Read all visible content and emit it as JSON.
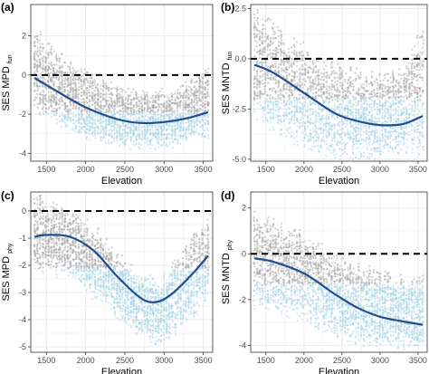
{
  "colors": {
    "grid": "#ebebeb",
    "panel_border": "#333333",
    "points_grey": "#a9a9a9",
    "points_blue": "#a7d3e6",
    "trend_line": "#1f4e8c",
    "reference_line": "#000000"
  },
  "chart_data": [
    {
      "type": "scatter",
      "panel": "(a)",
      "xlabel": "Elevation",
      "ylabel": "SES MPD",
      "ylabel_sub": "fun",
      "xlim": [
        1300,
        3620
      ],
      "ylim": [
        -4.4,
        3.6
      ],
      "xticks": [
        1500,
        2000,
        2500,
        3000,
        3500
      ],
      "yticks": [
        -4,
        -2,
        0,
        2
      ],
      "grid": true,
      "reference_line": {
        "y": 0,
        "style": "dashed"
      },
      "trend": {
        "x": [
          1350,
          1600,
          2000,
          2400,
          2700,
          3000,
          3300,
          3560
        ],
        "y": [
          -0.15,
          -0.75,
          -1.65,
          -2.25,
          -2.45,
          -2.4,
          -2.2,
          -1.9
        ]
      },
      "point_cloud": {
        "top": [
          2.3,
          1.3,
          0.2,
          -0.5,
          -0.9,
          -0.8,
          -0.3,
          0.7
        ],
        "bottom": [
          -1.9,
          -2.5,
          -3.2,
          -3.6,
          -3.8,
          -3.7,
          -3.5,
          -3.2
        ],
        "blue_threshold": -1.9
      }
    },
    {
      "type": "scatter",
      "panel": "(b)",
      "xlabel": "Elevation",
      "ylabel": "SES MNTD",
      "ylabel_sub": "fun",
      "xlim": [
        1300,
        3620
      ],
      "ylim": [
        -5.1,
        2.7
      ],
      "xticks": [
        1500,
        2000,
        2500,
        3000,
        3500
      ],
      "yticks": [
        -5.0,
        -2.5,
        0.0,
        2.5
      ],
      "grid": true,
      "reference_line": {
        "y": 0,
        "style": "dashed"
      },
      "trend": {
        "x": [
          1350,
          1600,
          2000,
          2400,
          2700,
          3000,
          3300,
          3560
        ],
        "y": [
          -0.3,
          -0.7,
          -1.7,
          -2.7,
          -3.1,
          -3.3,
          -3.25,
          -2.85
        ]
      },
      "point_cloud": {
        "top": [
          2.5,
          1.7,
          0.6,
          -0.3,
          -0.7,
          -0.7,
          -0.3,
          1.5
        ],
        "bottom": [
          -2.9,
          -3.6,
          -4.5,
          -5.0,
          -5.0,
          -5.0,
          -4.8,
          -4.6
        ],
        "blue_threshold": -2.0
      }
    },
    {
      "type": "scatter",
      "panel": "(c)",
      "xlabel": "Elevation",
      "ylabel": "SES MPD",
      "ylabel_sub": "phy",
      "xlim": [
        1300,
        3620
      ],
      "ylim": [
        -5.2,
        0.7
      ],
      "xticks": [
        1500,
        2000,
        2500,
        3000,
        3500
      ],
      "yticks": [
        -5,
        -4,
        -3,
        -2,
        -1,
        0
      ],
      "grid": true,
      "reference_line": {
        "y": 0,
        "style": "dashed"
      },
      "trend": {
        "x": [
          1350,
          1500,
          1800,
          2100,
          2400,
          2700,
          2900,
          3100,
          3350,
          3560
        ],
        "y": [
          -0.95,
          -0.88,
          -0.95,
          -1.45,
          -2.4,
          -3.2,
          -3.35,
          -3.05,
          -2.35,
          -1.65
        ]
      },
      "point_cloud": {
        "top": [
          0.5,
          0.3,
          0.1,
          -0.6,
          -1.5,
          -2.3,
          -2.5,
          -2.0,
          -1.1,
          -0.1
        ],
        "bottom": [
          -2.3,
          -2.2,
          -2.5,
          -3.2,
          -3.9,
          -4.6,
          -5.0,
          -4.6,
          -4.0,
          -3.2
        ],
        "blue_threshold": -2.1
      }
    },
    {
      "type": "scatter",
      "panel": "(d)",
      "xlabel": "Elevation",
      "ylabel": "SES MNTD",
      "ylabel_sub": "phy",
      "xlim": [
        1300,
        3620
      ],
      "ylim": [
        -4.3,
        2.7
      ],
      "xticks": [
        1500,
        2000,
        2500,
        3000,
        3500
      ],
      "yticks": [
        -4,
        -2,
        0,
        2
      ],
      "grid": true,
      "reference_line": {
        "y": 0,
        "style": "dashed"
      },
      "trend": {
        "x": [
          1350,
          1600,
          2000,
          2400,
          2700,
          3000,
          3300,
          3560
        ],
        "y": [
          -0.2,
          -0.35,
          -0.85,
          -1.75,
          -2.35,
          -2.75,
          -2.95,
          -3.1
        ]
      },
      "point_cloud": {
        "top": [
          2.0,
          1.5,
          0.8,
          0.2,
          -0.4,
          -0.8,
          -1.1,
          -0.9
        ],
        "bottom": [
          -2.4,
          -2.6,
          -3.0,
          -3.6,
          -3.9,
          -4.0,
          -4.1,
          -4.1
        ],
        "blue_threshold": -1.3
      }
    }
  ]
}
